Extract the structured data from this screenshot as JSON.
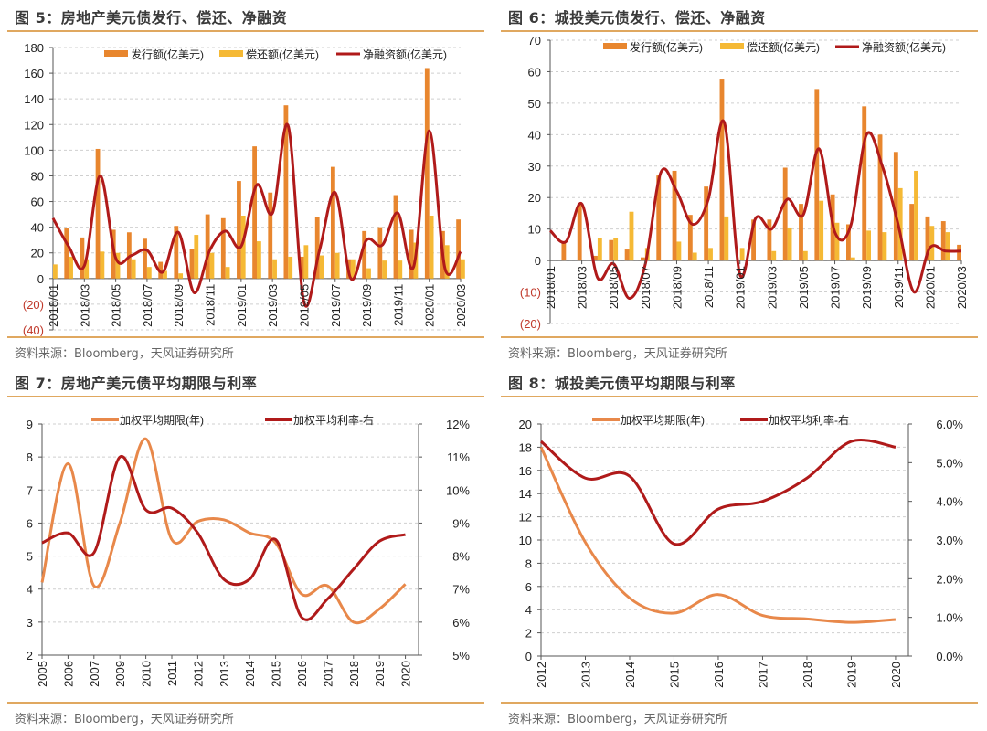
{
  "source_note": "资料来源：Bloomberg，天风证券研究所",
  "chart_data": [
    {
      "type": "bar",
      "title": "图 5：房地产美元债发行、偿还、净融资",
      "categories": [
        "2018/01",
        "2018/02",
        "2018/03",
        "2018/04",
        "2018/05",
        "2018/06",
        "2018/07",
        "2018/08",
        "2018/09",
        "2018/10",
        "2018/11",
        "2018/12",
        "2019/01",
        "2019/02",
        "2019/03",
        "2019/04",
        "2019/05",
        "2019/06",
        "2019/07",
        "2019/08",
        "2019/09",
        "2019/10",
        "2019/11",
        "2019/12",
        "2020/01",
        "2020/02",
        "2020/03"
      ],
      "tick_labels": [
        "2018/01",
        "2018/03",
        "2018/05",
        "2018/07",
        "2018/09",
        "2018/11",
        "2019/01",
        "2019/03",
        "2019/05",
        "2019/07",
        "2019/09",
        "2019/11",
        "2020/01",
        "2020/03"
      ],
      "yticks": [
        "(40)",
        "(20)",
        "0",
        "20",
        "40",
        "60",
        "80",
        "100",
        "120",
        "140",
        "160",
        "180"
      ],
      "ytick_values": [
        -40,
        -20,
        0,
        20,
        40,
        60,
        80,
        100,
        120,
        140,
        160,
        180
      ],
      "ylim": [
        -40,
        180
      ],
      "xlabel": "",
      "ylabel": "",
      "grid": true,
      "legend_position": "top",
      "series": [
        {
          "name": "发行额(亿美元)",
          "kind": "bar",
          "color": "#e8862e",
          "values": [
            0,
            39,
            32,
            101,
            38,
            36,
            31,
            13,
            41,
            23,
            50,
            47,
            76,
            103,
            67,
            135,
            17,
            48,
            87,
            15,
            37,
            40,
            65,
            38,
            164,
            37,
            46
          ]
        },
        {
          "name": "偿还额(亿美元)",
          "kind": "bar",
          "color": "#f5b935",
          "values": [
            11,
            17,
            15,
            21,
            20,
            15,
            9,
            6,
            4,
            34,
            20,
            9,
            49,
            29,
            15,
            17,
            26,
            18,
            20,
            15,
            8,
            14,
            14,
            28,
            49,
            26,
            15
          ]
        },
        {
          "name": "净融资额(亿美元)",
          "kind": "line",
          "color": "#b01a1a",
          "values": [
            47,
            25,
            10,
            80,
            16,
            18,
            22,
            5,
            36,
            -11,
            22,
            37,
            25,
            73,
            51,
            119,
            -18,
            22,
            67,
            0,
            30,
            26,
            51,
            9,
            115,
            8,
            21
          ]
        }
      ]
    },
    {
      "type": "bar",
      "title": "图 6：城投美元债发行、偿还、净融资",
      "categories": [
        "2018/01",
        "2018/02",
        "2018/03",
        "2018/04",
        "2018/05",
        "2018/06",
        "2018/07",
        "2018/08",
        "2018/09",
        "2018/10",
        "2018/11",
        "2018/12",
        "2019/01",
        "2019/02",
        "2019/03",
        "2019/04",
        "2019/05",
        "2019/06",
        "2019/07",
        "2019/08",
        "2019/09",
        "2019/10",
        "2019/11",
        "2019/12",
        "2020/01",
        "2020/02",
        "2020/03"
      ],
      "tick_labels": [
        "2018/01",
        "2018/03",
        "2018/05",
        "2018/07",
        "2018/09",
        "2018/11",
        "2019/01",
        "2019/03",
        "2019/05",
        "2019/07",
        "2019/09",
        "2019/11",
        "2020/01",
        "2020/03"
      ],
      "yticks": [
        "(20)",
        "(10)",
        "0",
        "10",
        "20",
        "30",
        "40",
        "50",
        "60",
        "70"
      ],
      "ytick_values": [
        -20,
        -10,
        0,
        10,
        20,
        30,
        40,
        50,
        60,
        70
      ],
      "ylim": [
        -20,
        70
      ],
      "xlabel": "",
      "ylabel": "",
      "grid": true,
      "legend_position": "top",
      "series": [
        {
          "name": "发行额(亿美元)",
          "kind": "bar",
          "color": "#e8862e",
          "values": [
            0,
            6,
            18,
            1.5,
            6.5,
            3.5,
            1,
            27,
            28.5,
            14.5,
            23.5,
            57.5,
            0,
            13,
            13,
            29.5,
            18,
            54.5,
            21,
            11.5,
            49,
            40,
            34.5,
            18,
            14,
            12.5,
            5
          ]
        },
        {
          "name": "偿还额(亿美元)",
          "kind": "bar",
          "color": "#f5b935",
          "values": [
            0,
            0,
            0,
            7,
            7,
            15.5,
            4,
            0,
            6,
            2.5,
            4,
            14,
            4,
            0,
            3,
            10.5,
            3,
            19,
            12,
            1,
            9.5,
            9,
            23,
            28.5,
            11,
            9,
            0
          ]
        },
        {
          "name": "净融资额(亿美元)",
          "kind": "line",
          "color": "#b01a1a",
          "values": [
            9.5,
            6,
            18,
            -5.5,
            -1,
            -12,
            -1.5,
            28,
            22,
            11.5,
            19.5,
            44,
            -4.5,
            13.5,
            10,
            19.5,
            14.5,
            35.5,
            9,
            11,
            40,
            30,
            11.5,
            -10,
            4,
            3,
            3
          ]
        }
      ]
    },
    {
      "type": "line",
      "title": "图 7：房地产美元债平均期限与利率",
      "categories": [
        "2005",
        "2006",
        "2007",
        "2009",
        "2010",
        "2011",
        "2012",
        "2013",
        "2014",
        "2015",
        "2016",
        "2017",
        "2018",
        "2019",
        "2020"
      ],
      "xlabel": "",
      "ylabel": "",
      "yticks_left": [
        "2",
        "3",
        "4",
        "5",
        "6",
        "7",
        "8",
        "9"
      ],
      "ylim_left": [
        2,
        9
      ],
      "yticks_right": [
        "5%",
        "6%",
        "7%",
        "8%",
        "9%",
        "10%",
        "11%",
        "12%"
      ],
      "ylim_right": [
        5,
        12
      ],
      "grid": true,
      "legend_position": "top",
      "series": [
        {
          "name": "加权平均期限(年)",
          "axis": "left",
          "color": "#e8884a",
          "values": [
            4.2,
            7.8,
            4.1,
            6.0,
            8.55,
            5.5,
            6.05,
            6.1,
            5.7,
            5.4,
            3.85,
            4.1,
            3.0,
            3.4,
            4.15
          ]
        },
        {
          "name": "加权平均利率-右",
          "axis": "right",
          "color": "#b01a1a",
          "unit": "%",
          "values": [
            8.4,
            8.7,
            8.1,
            11.0,
            9.4,
            9.45,
            8.7,
            7.3,
            7.3,
            8.5,
            6.15,
            6.7,
            7.6,
            8.45,
            8.65
          ]
        }
      ]
    },
    {
      "type": "line",
      "title": "图 8：城投美元债平均期限与利率",
      "categories": [
        "2012",
        "2013",
        "2014",
        "2015",
        "2016",
        "2017",
        "2018",
        "2019",
        "2020"
      ],
      "xlabel": "",
      "ylabel": "",
      "yticks_left": [
        "0",
        "2",
        "4",
        "6",
        "8",
        "10",
        "12",
        "14",
        "16",
        "18",
        "20"
      ],
      "ylim_left": [
        0,
        20
      ],
      "yticks_right": [
        "0.0%",
        "1.0%",
        "2.0%",
        "3.0%",
        "4.0%",
        "5.0%",
        "6.0%"
      ],
      "ylim_right": [
        0,
        6
      ],
      "grid": true,
      "legend_position": "top",
      "series": [
        {
          "name": "加权平均期限(年)",
          "axis": "left",
          "color": "#e8884a",
          "values": [
            18.0,
            9.8,
            5.0,
            3.7,
            5.3,
            3.5,
            3.2,
            2.9,
            3.15
          ]
        },
        {
          "name": "加权平均利率-右",
          "axis": "right",
          "color": "#b01a1a",
          "unit": "%",
          "values": [
            5.55,
            4.6,
            4.65,
            2.9,
            3.8,
            4.0,
            4.6,
            5.55,
            5.4
          ]
        }
      ]
    }
  ]
}
